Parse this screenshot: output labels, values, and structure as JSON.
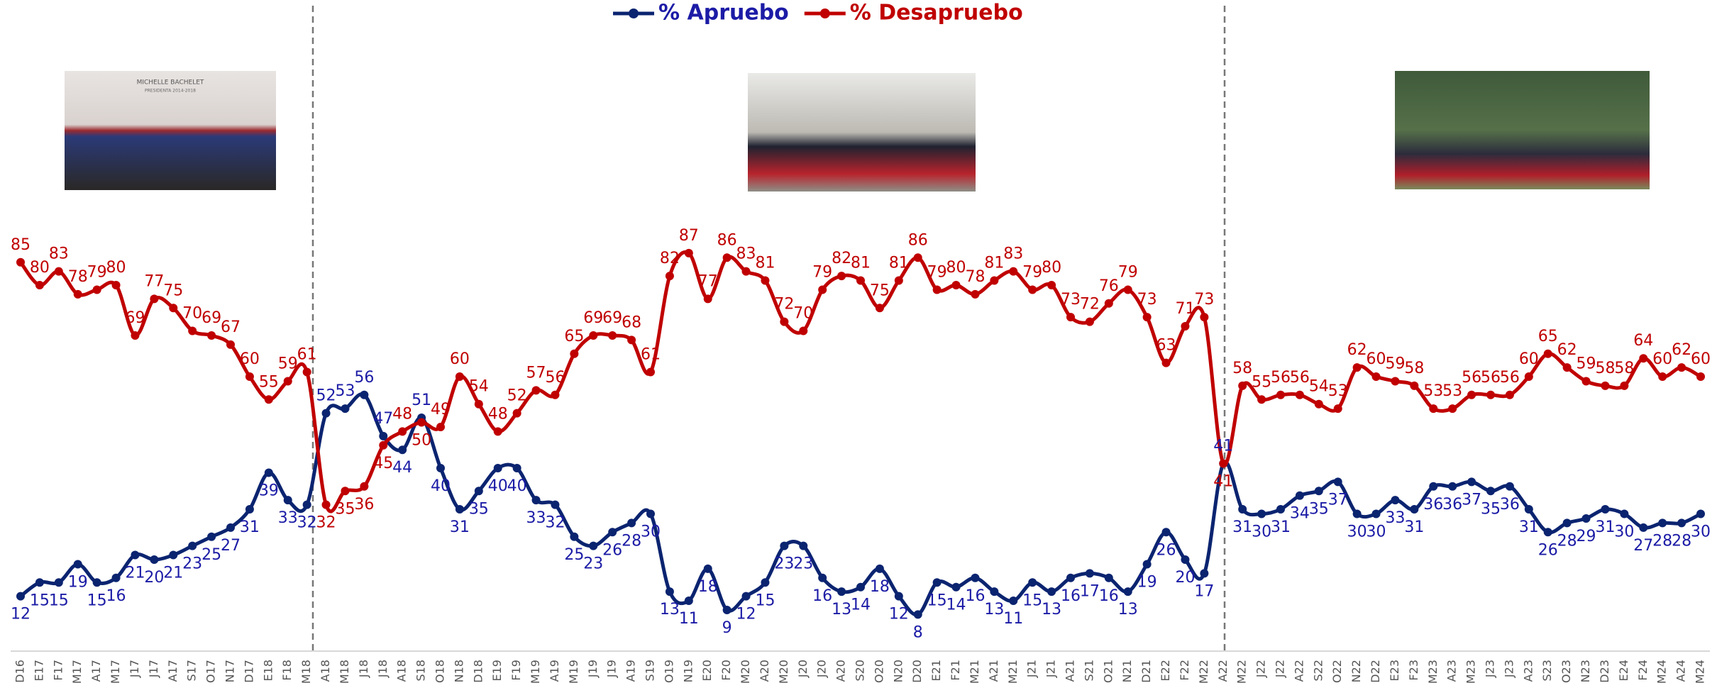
{
  "chart_data": {
    "type": "line",
    "annotations": [
      "MICHELLE BACHELET",
      "PRESIDENTA 2014-2018"
    ],
    "categories": [
      "D16",
      "E17",
      "F17",
      "M17",
      "A17",
      "M17",
      "J17",
      "J17",
      "A17",
      "S17",
      "O17",
      "N17",
      "D17",
      "E18",
      "F18",
      "M18",
      "A18",
      "M18",
      "J18",
      "J18",
      "A18",
      "S18",
      "O18",
      "N18",
      "D18",
      "E19",
      "F19",
      "M19",
      "A19",
      "M19",
      "J19",
      "J19",
      "A19",
      "S19",
      "O19",
      "N19",
      "E20",
      "F20",
      "M20",
      "A20",
      "M20",
      "J20",
      "J20",
      "A20",
      "S20",
      "O20",
      "N20",
      "D20",
      "E21",
      "F21",
      "M21",
      "A21",
      "M21",
      "J21",
      "J21",
      "A21",
      "S21",
      "O21",
      "N21",
      "D21",
      "E22",
      "F22",
      "M22",
      "A22",
      "M22",
      "J22",
      "J22",
      "A22",
      "S22",
      "O22",
      "N22",
      "D22",
      "E23",
      "F23",
      "M23",
      "A23",
      "M23",
      "J23",
      "J23",
      "A23",
      "S23",
      "O23",
      "N23",
      "D23",
      "E24",
      "F24",
      "M24",
      "A24",
      "M24"
    ],
    "series": [
      {
        "name": "% Apruebo",
        "color": "#0b2470",
        "label_color": "#1b1ba6",
        "values": [
          12,
          15,
          15,
          19,
          15,
          16,
          21,
          20,
          21,
          23,
          25,
          27,
          31,
          39,
          33,
          32,
          52,
          53,
          56,
          47,
          44,
          51,
          40,
          31,
          35,
          40,
          40,
          33,
          32,
          25,
          23,
          26,
          28,
          30,
          13,
          11,
          18,
          9,
          12,
          15,
          23,
          23,
          16,
          13,
          14,
          18,
          12,
          8,
          15,
          14,
          16,
          13,
          11,
          15,
          13,
          16,
          17,
          16,
          13,
          19,
          26,
          20,
          17,
          41,
          31,
          30,
          31,
          34,
          35,
          37,
          30,
          30,
          33,
          31,
          36,
          36,
          37,
          35,
          36,
          31,
          26,
          28,
          29,
          31,
          30,
          27,
          28,
          28,
          30
        ]
      },
      {
        "name": "% Desapruebo",
        "color": "#c00000",
        "label_color": "#c00000",
        "values": [
          85,
          80,
          83,
          78,
          79,
          80,
          69,
          77,
          75,
          70,
          69,
          67,
          60,
          55,
          59,
          61,
          32,
          35,
          36,
          45,
          48,
          50,
          49,
          60,
          54,
          48,
          52,
          57,
          56,
          65,
          69,
          69,
          68,
          61,
          82,
          87,
          77,
          86,
          83,
          81,
          72,
          70,
          79,
          82,
          81,
          75,
          81,
          86,
          79,
          80,
          78,
          81,
          83,
          79,
          80,
          73,
          72,
          76,
          79,
          73,
          63,
          71,
          73,
          41,
          58,
          55,
          56,
          56,
          54,
          53,
          62,
          60,
          59,
          58,
          53,
          53,
          56,
          56,
          56,
          60,
          65,
          62,
          59,
          58,
          58,
          64,
          60,
          62,
          60
        ]
      }
    ],
    "ylim": [
      0,
      100
    ],
    "legend": "top"
  }
}
